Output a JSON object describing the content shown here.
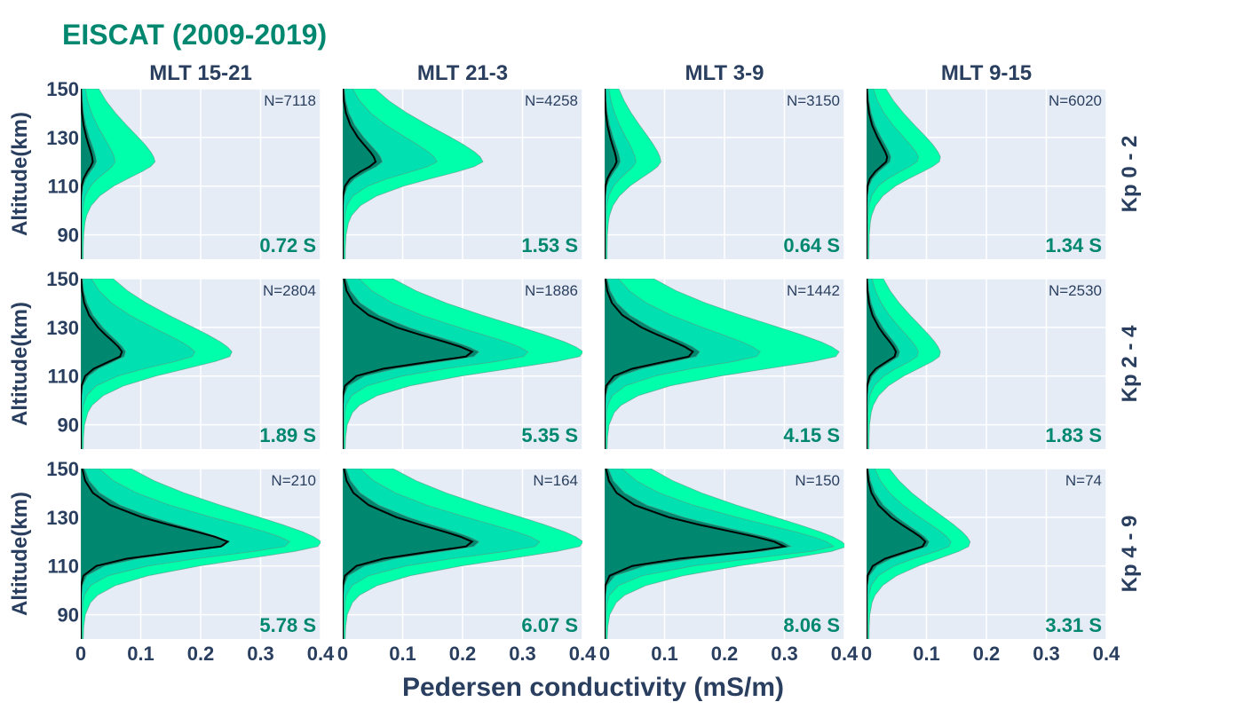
{
  "title": "EISCAT (2009-2019)",
  "xlabel": "Pedersen conductivity (mS/m)",
  "ylabel": "Altitude(km)",
  "columns": [
    "MLT 15-21",
    "MLT 21-3",
    "MLT 3-9",
    "MLT 9-15"
  ],
  "rows": [
    "Kp 0 - 2",
    "Kp 2 - 4",
    "Kp 4 - 9"
  ],
  "colors": {
    "title": "#00876f",
    "text": "#2a3f5f",
    "plot_bg": "#e5ecf6",
    "outer_band": "#00ffaa",
    "middle_band": "#00e0b0",
    "inner_band": "#00876f",
    "median_line": "#000000",
    "total_label": "#00876f"
  },
  "chart_data": {
    "type": "area",
    "x_ticks": [
      "0",
      "0.1",
      "0.2",
      "0.3",
      "0.4"
    ],
    "y_ticks": [
      "90",
      "110",
      "130",
      "150"
    ],
    "xlim": [
      0,
      0.4
    ],
    "ylim": [
      80,
      150
    ],
    "grid": true,
    "profile_altitudes_km": [
      80,
      85,
      90,
      95,
      98,
      102,
      106,
      110,
      113,
      116,
      118,
      120,
      122,
      124,
      127,
      130,
      135,
      140,
      145,
      150
    ],
    "panels": [
      {
        "row": 0,
        "col": 0,
        "n_label": "N=7118",
        "total_label": "0.72 S",
        "peak_altitude_km": 120,
        "median_peak": 0.02,
        "inner_peak": 0.025,
        "middle_peak": 0.055,
        "outer_peak": 0.12
      },
      {
        "row": 0,
        "col": 1,
        "n_label": "N=4258",
        "total_label": "1.53 S",
        "peak_altitude_km": 120,
        "median_peak": 0.055,
        "inner_peak": 0.065,
        "middle_peak": 0.155,
        "outer_peak": 0.23
      },
      {
        "row": 0,
        "col": 2,
        "n_label": "N=3150",
        "total_label": "0.64 S",
        "peak_altitude_km": 120,
        "median_peak": 0.02,
        "inner_peak": 0.025,
        "middle_peak": 0.05,
        "outer_peak": 0.09
      },
      {
        "row": 0,
        "col": 3,
        "n_label": "N=6020",
        "total_label": "1.34 S",
        "peak_altitude_km": 121,
        "median_peak": 0.035,
        "inner_peak": 0.04,
        "middle_peak": 0.085,
        "outer_peak": 0.12
      },
      {
        "row": 1,
        "col": 0,
        "n_label": "N=2804",
        "total_label": "1.89 S",
        "peak_altitude_km": 119,
        "median_peak": 0.07,
        "inner_peak": 0.075,
        "middle_peak": 0.19,
        "outer_peak": 0.25
      },
      {
        "row": 1,
        "col": 1,
        "n_label": "N=1886",
        "total_label": "5.35 S",
        "peak_altitude_km": 119,
        "median_peak": 0.22,
        "inner_peak": 0.23,
        "middle_peak": 0.31,
        "outer_peak": 0.4
      },
      {
        "row": 1,
        "col": 2,
        "n_label": "N=1442",
        "total_label": "4.15 S",
        "peak_altitude_km": 119,
        "median_peak": 0.15,
        "inner_peak": 0.16,
        "middle_peak": 0.26,
        "outer_peak": 0.39
      },
      {
        "row": 1,
        "col": 3,
        "n_label": "N=2530",
        "total_label": "1.83 S",
        "peak_altitude_km": 119,
        "median_peak": 0.05,
        "inner_peak": 0.055,
        "middle_peak": 0.085,
        "outer_peak": 0.12
      },
      {
        "row": 2,
        "col": 0,
        "n_label": "N=210",
        "total_label": "5.78 S",
        "peak_altitude_km": 119,
        "median_peak": 0.25,
        "inner_peak": 0.25,
        "middle_peak": 0.35,
        "outer_peak": 0.4
      },
      {
        "row": 2,
        "col": 1,
        "n_label": "N=164",
        "total_label": "6.07 S",
        "peak_altitude_km": 119,
        "median_peak": 0.22,
        "inner_peak": 0.23,
        "middle_peak": 0.33,
        "outer_peak": 0.4
      },
      {
        "row": 2,
        "col": 2,
        "n_label": "N=150",
        "total_label": "8.06 S",
        "peak_altitude_km": 118,
        "median_peak": 0.3,
        "inner_peak": 0.31,
        "middle_peak": 0.38,
        "outer_peak": 0.4
      },
      {
        "row": 2,
        "col": 3,
        "n_label": "N=74",
        "total_label": "3.31 S",
        "peak_altitude_km": 119,
        "median_peak": 0.1,
        "inner_peak": 0.105,
        "middle_peak": 0.14,
        "outer_peak": 0.17
      }
    ]
  }
}
